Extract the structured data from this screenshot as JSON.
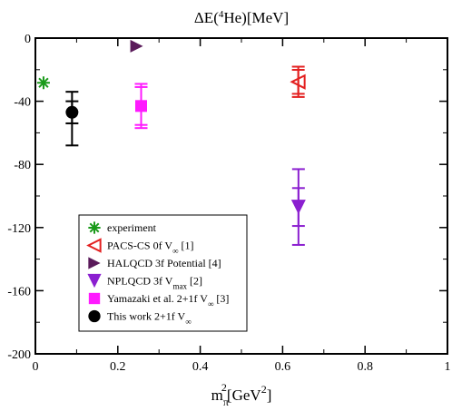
{
  "chart_data": {
    "type": "scatter",
    "title": "ΔE(⁴He)[MeV]",
    "title_parts": [
      "ΔE(",
      "4",
      "He)[MeV]"
    ],
    "xlabel_parts": [
      "m",
      "π",
      "2",
      "[GeV",
      "2",
      "]"
    ],
    "ylabel": "",
    "xlim": [
      0,
      1
    ],
    "ylim": [
      -200,
      0
    ],
    "xticks": [
      0,
      0.2,
      0.4,
      0.6,
      0.8,
      1
    ],
    "xtick_labels": [
      "0",
      "0.2",
      "0.4",
      "0.6",
      "0.8",
      "1"
    ],
    "yticks": [
      -200,
      -160,
      -120,
      -80,
      -40,
      0
    ],
    "ytick_labels": [
      "-200",
      "-160",
      "-120",
      "-80",
      "-40",
      "0"
    ],
    "grid": false,
    "legend_position": "bottom-left",
    "series": [
      {
        "name": "experiment",
        "marker": "asterisk",
        "color": "#1a9a1a",
        "points": [
          {
            "x": 0.0197,
            "y": -28.3
          }
        ]
      },
      {
        "name": "PACS-CS 0f V∞ [1]",
        "legend_parts": [
          "PACS-CS 0f V",
          "∞",
          " [1]"
        ],
        "marker": "triangle-left-open",
        "color": "#e32020",
        "points": [
          {
            "x": 0.638,
            "y": -27.7,
            "err_inner": [
              -35.3,
              -20.1
            ],
            "err_outer": [
              -37.3,
              -18.1
            ]
          }
        ]
      },
      {
        "name": "HALQCD 3f Potential [4]",
        "legend_parts": [
          "HALQCD 3f Potential [4]"
        ],
        "marker": "triangle-right",
        "color": "#5a1a5a",
        "points": [
          {
            "x": 0.2457,
            "y": -5.09
          }
        ]
      },
      {
        "name": "NPLQCD 3f Vmax [2]",
        "legend_parts": [
          "NPLQCD 3f V",
          "max",
          " [2]"
        ],
        "marker": "triangle-down",
        "color": "#8b1fd0",
        "points": [
          {
            "x": 0.6384,
            "y": -107,
            "err_inner": [
              -119,
              -95
            ],
            "err_outer": [
              -131,
              -83
            ]
          }
        ]
      },
      {
        "name": "Yamazaki et al. 2+1f V∞ [3]",
        "legend_parts": [
          "Yamazaki et al. 2+1f V",
          "∞",
          " [3]"
        ],
        "marker": "square",
        "color": "#ff1aff",
        "points": [
          {
            "x": 0.2566,
            "y": -43,
            "err_inner": [
              -55,
              -31
            ],
            "err_outer": [
              -57,
              -29
            ]
          }
        ]
      },
      {
        "name": "This work 2+1f V∞",
        "legend_parts": [
          "This work 2+1f V",
          "∞",
          ""
        ],
        "marker": "circle",
        "color": "#000000",
        "points": [
          {
            "x": 0.0889,
            "y": -47,
            "err_inner": [
              -54,
              -40
            ],
            "err_outer": [
              -68,
              -34
            ]
          }
        ]
      }
    ]
  }
}
